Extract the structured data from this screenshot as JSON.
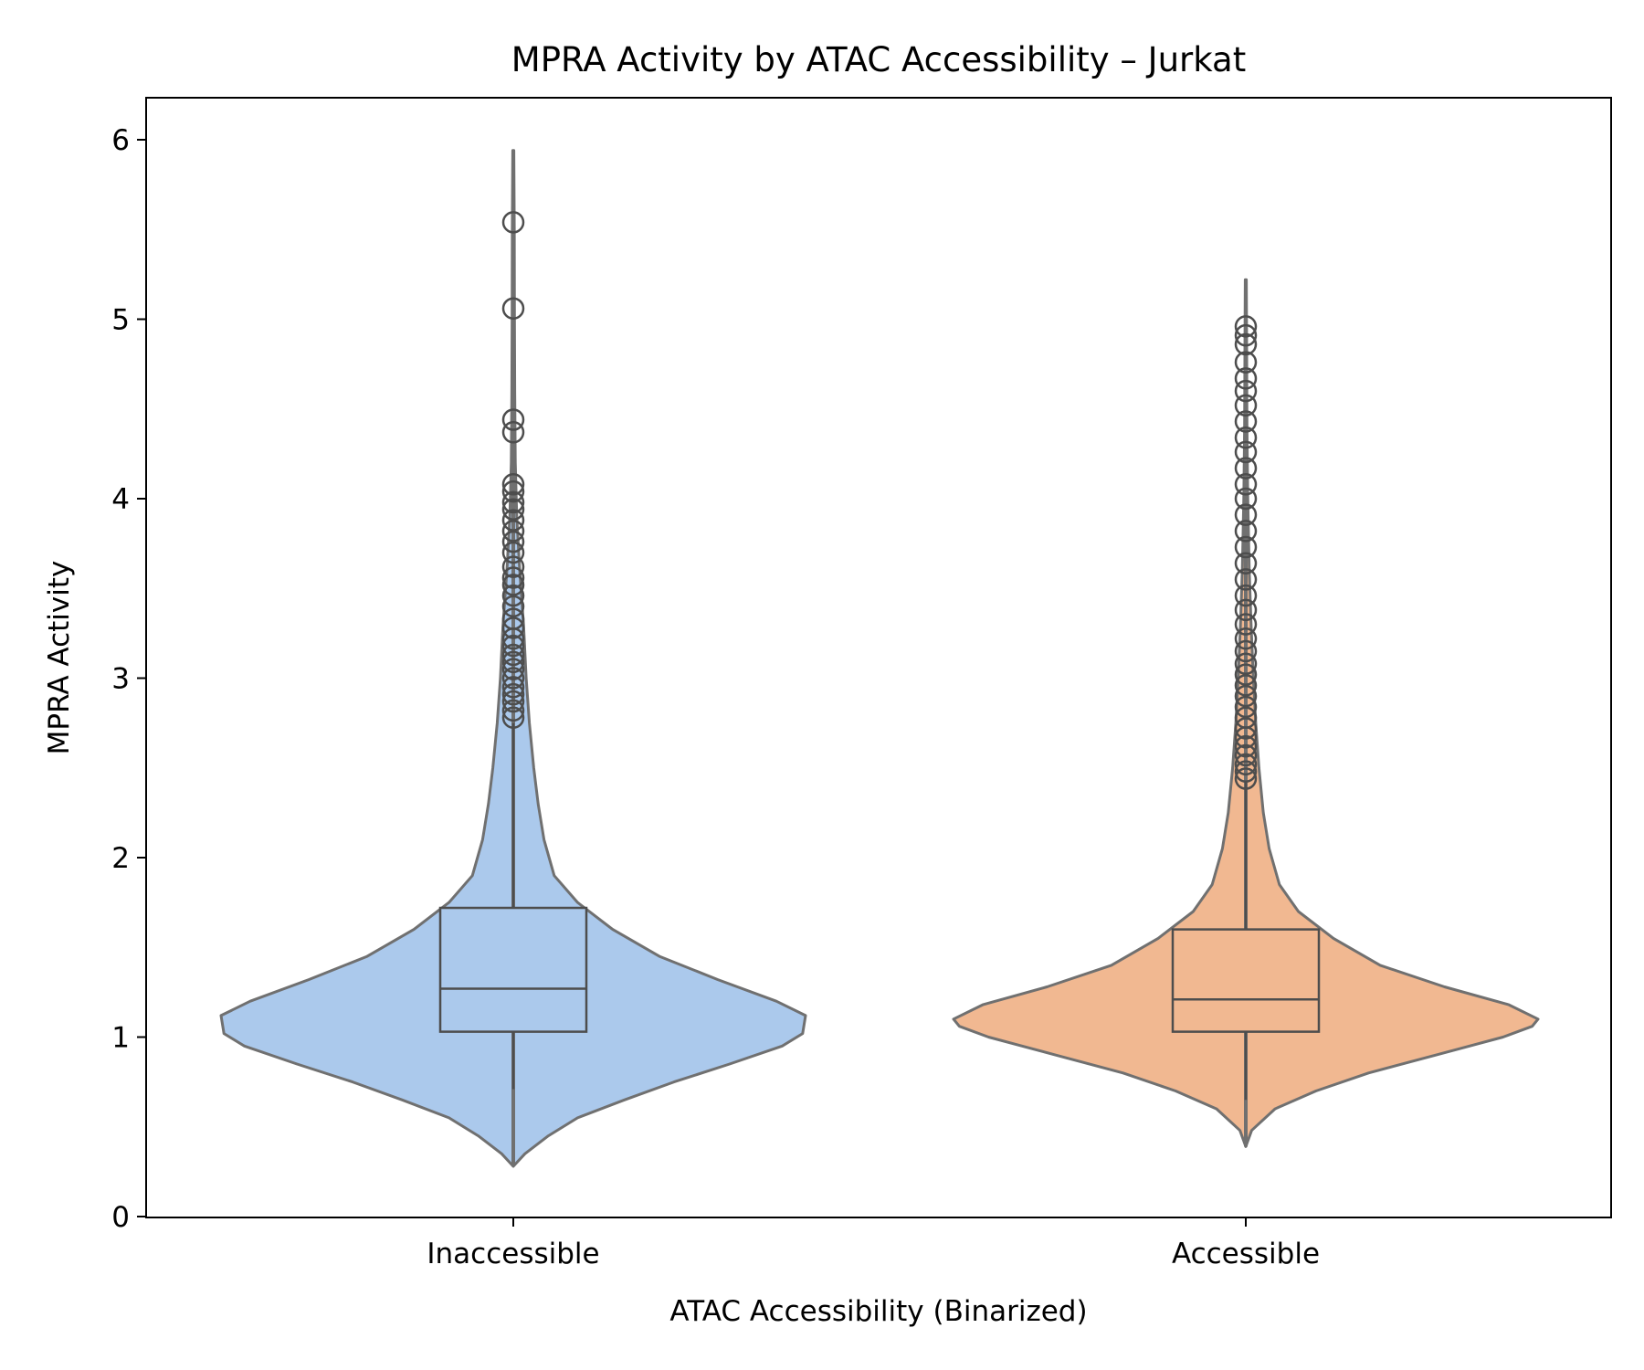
{
  "chart_data": {
    "type": "violin",
    "title": "MPRA Activity by ATAC Accessibility – Jurkat",
    "xlabel": "ATAC Accessibility (Binarized)",
    "ylabel": "MPRA Activity",
    "ylim": [
      0,
      6.25
    ],
    "yticks": [
      0,
      1,
      2,
      3,
      4,
      5,
      6
    ],
    "grid": false,
    "legend": "none",
    "categories": [
      "Inaccessible",
      "Accessible"
    ],
    "groups": [
      {
        "category": "Inaccessible",
        "color": "#abc9ec",
        "edge_color": "#707070",
        "box_color": "#4d4d4d",
        "violin_min": 0.28,
        "violin_max": 5.94,
        "density": [
          [
            0.28,
            0.0
          ],
          [
            0.35,
            0.04
          ],
          [
            0.45,
            0.12
          ],
          [
            0.55,
            0.22
          ],
          [
            0.65,
            0.38
          ],
          [
            0.75,
            0.55
          ],
          [
            0.85,
            0.74
          ],
          [
            0.95,
            0.92
          ],
          [
            1.02,
            0.99
          ],
          [
            1.12,
            1.0
          ],
          [
            1.2,
            0.9
          ],
          [
            1.32,
            0.7
          ],
          [
            1.45,
            0.5
          ],
          [
            1.6,
            0.34
          ],
          [
            1.75,
            0.22
          ],
          [
            1.9,
            0.14
          ],
          [
            2.1,
            0.105
          ],
          [
            2.3,
            0.085
          ],
          [
            2.5,
            0.07
          ],
          [
            2.75,
            0.055
          ],
          [
            3.0,
            0.044
          ],
          [
            3.3,
            0.035
          ],
          [
            3.6,
            0.022
          ],
          [
            3.9,
            0.012
          ],
          [
            4.2,
            0.007
          ],
          [
            4.6,
            0.005
          ],
          [
            5.0,
            0.004
          ],
          [
            5.5,
            0.0035
          ],
          [
            5.94,
            0.002
          ]
        ],
        "q1": 1.03,
        "median": 1.27,
        "q3": 1.72,
        "whisker_low": 0.71,
        "whisker_high": 2.75,
        "outliers": [
          2.78,
          2.82,
          2.87,
          2.91,
          2.95,
          3.0,
          3.05,
          3.09,
          3.13,
          3.18,
          3.22,
          3.28,
          3.33,
          3.4,
          3.46,
          3.52,
          3.56,
          3.62,
          3.7,
          3.76,
          3.82,
          3.88,
          3.94,
          3.98,
          4.04,
          4.08,
          4.37,
          4.44,
          5.06,
          5.54
        ]
      },
      {
        "category": "Accessible",
        "color": "#f1b891",
        "edge_color": "#707070",
        "box_color": "#4d4d4d",
        "violin_min": 0.39,
        "violin_max": 5.22,
        "density": [
          [
            0.39,
            0.0
          ],
          [
            0.48,
            0.02
          ],
          [
            0.6,
            0.1
          ],
          [
            0.7,
            0.24
          ],
          [
            0.8,
            0.42
          ],
          [
            0.9,
            0.65
          ],
          [
            1.0,
            0.88
          ],
          [
            1.06,
            0.98
          ],
          [
            1.1,
            1.0
          ],
          [
            1.18,
            0.9
          ],
          [
            1.28,
            0.68
          ],
          [
            1.4,
            0.46
          ],
          [
            1.55,
            0.3
          ],
          [
            1.7,
            0.18
          ],
          [
            1.85,
            0.115
          ],
          [
            2.05,
            0.08
          ],
          [
            2.25,
            0.06
          ],
          [
            2.5,
            0.045
          ],
          [
            2.75,
            0.034
          ],
          [
            3.0,
            0.026
          ],
          [
            3.3,
            0.018
          ],
          [
            3.6,
            0.012
          ],
          [
            4.0,
            0.007
          ],
          [
            4.4,
            0.004
          ],
          [
            4.8,
            0.003
          ],
          [
            5.22,
            0.002
          ]
        ],
        "q1": 1.03,
        "median": 1.21,
        "q3": 1.6,
        "whisker_low": 0.65,
        "whisker_high": 2.42,
        "outliers": [
          2.44,
          2.48,
          2.52,
          2.57,
          2.62,
          2.67,
          2.72,
          2.78,
          2.84,
          2.9,
          2.96,
          3.02,
          3.08,
          3.15,
          3.22,
          3.3,
          3.38,
          3.46,
          3.55,
          3.64,
          3.73,
          3.82,
          3.91,
          4.0,
          4.08,
          4.17,
          4.26,
          4.34,
          4.43,
          4.52,
          4.6,
          4.67,
          4.76,
          4.86,
          4.91,
          4.96
        ]
      }
    ]
  }
}
